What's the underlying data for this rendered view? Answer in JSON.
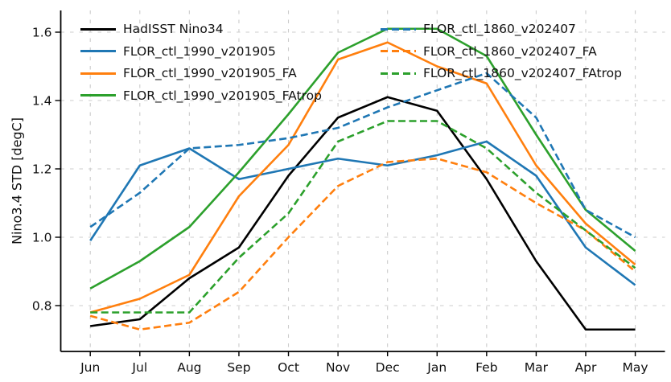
{
  "figure": {
    "background": "#ffffff",
    "text_color": "#111111",
    "grid_color": "#cccccc",
    "spine_color": "#000000"
  },
  "chart_data": {
    "type": "line",
    "title": "",
    "xlabel": "",
    "ylabel": "Nino3.4 STD [degC]",
    "categories": [
      "Jun",
      "Jul",
      "Aug",
      "Sep",
      "Oct",
      "Nov",
      "Dec",
      "Jan",
      "Feb",
      "Mar",
      "Apr",
      "May"
    ],
    "ytick_labels": [
      "0.8",
      "1.0",
      "1.2",
      "1.4",
      "1.6"
    ],
    "ytick_values": [
      0.8,
      1.0,
      1.2,
      1.4,
      1.6
    ],
    "ylim": [
      0.666,
      1.664
    ],
    "grid": true,
    "legend": {
      "position": "upper left",
      "columns": 2,
      "frame": false
    },
    "series": [
      {
        "name": "HadISST Nino34",
        "color": "#000000",
        "style": "solid",
        "values": [
          0.74,
          0.76,
          0.88,
          0.97,
          1.18,
          1.35,
          1.41,
          1.37,
          1.17,
          0.93,
          0.73,
          0.73
        ]
      },
      {
        "name": "FLOR_ctl_1990_v201905",
        "color": "#1f77b4",
        "style": "solid",
        "values": [
          0.99,
          1.21,
          1.26,
          1.17,
          1.2,
          1.23,
          1.21,
          1.24,
          1.28,
          1.18,
          0.97,
          0.86
        ]
      },
      {
        "name": "FLOR_ctl_1990_v201905_FA",
        "color": "#ff7f0e",
        "style": "solid",
        "values": [
          0.78,
          0.82,
          0.89,
          1.12,
          1.27,
          1.52,
          1.57,
          1.5,
          1.45,
          1.21,
          1.04,
          0.92
        ]
      },
      {
        "name": "FLOR_ctl_1990_v201905_FAtrop",
        "color": "#2ca02c",
        "style": "solid",
        "values": [
          0.85,
          0.93,
          1.03,
          1.19,
          1.36,
          1.54,
          1.61,
          1.61,
          1.53,
          1.3,
          1.08,
          0.96
        ]
      },
      {
        "name": "FLOR_ctl_1860_v202407",
        "color": "#1f77b4",
        "style": "dashed",
        "values": [
          1.03,
          1.13,
          1.26,
          1.27,
          1.29,
          1.32,
          1.38,
          1.43,
          1.48,
          1.35,
          1.08,
          1.0
        ]
      },
      {
        "name": "FLOR_ctl_1860_v202407_FA",
        "color": "#ff7f0e",
        "style": "dashed",
        "values": [
          0.77,
          0.73,
          0.75,
          0.84,
          1.0,
          1.15,
          1.22,
          1.23,
          1.19,
          1.1,
          1.02,
          0.9
        ]
      },
      {
        "name": "FLOR_ctl_1860_v202407_FAtrop",
        "color": "#2ca02c",
        "style": "dashed",
        "values": [
          0.78,
          0.78,
          0.78,
          0.94,
          1.07,
          1.28,
          1.34,
          1.34,
          1.26,
          1.13,
          1.02,
          0.91
        ]
      }
    ]
  }
}
